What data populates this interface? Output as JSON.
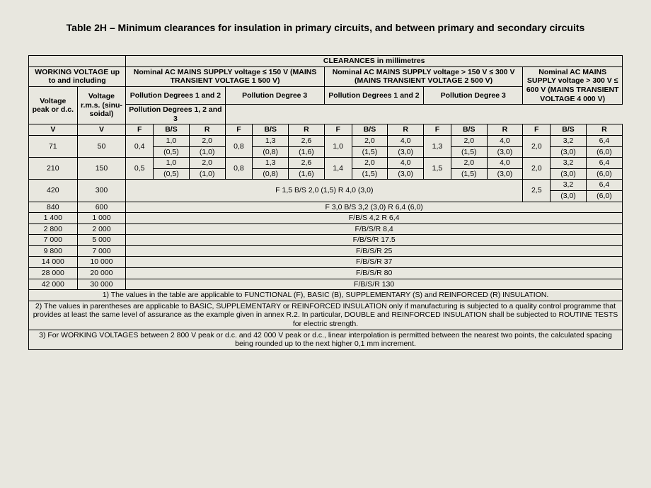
{
  "title": "Table 2H – Minimum clearances for insulation in primary circuits, and between primary and secondary circuits",
  "clearances_label": "CLEARANCES in millimetres",
  "headers": {
    "working": "WORKING VOLTAGE up to and including",
    "grp1": "Nominal AC MAINS SUPPLY voltage ≤ 150 V (MAINS TRANSIENT VOLTAGE 1 500 V)",
    "grp2": "Nominal AC MAINS SUPPLY voltage > 150 V ≤ 300 V (MAINS TRANSIENT VOLTAGE 2 500 V)",
    "grp3": "Nominal AC MAINS SUPPLY voltage > 300 V ≤ 600 V (MAINS TRANSIENT VOLTAGE 4 000 V)",
    "vpeak": "Voltage peak or d.c.",
    "vrms": "Voltage r.m.s. (sinu-soidal)",
    "pd12": "Pollution Degrees 1 and 2",
    "pd3": "Pollution Degree 3",
    "pd123": "Pollution Degrees 1, 2 and 3",
    "V": "V",
    "F": "F",
    "BS": "B/S",
    "R": "R"
  },
  "rows_top": [
    {
      "v1": "71",
      "v2": "50",
      "c": [
        [
          "0,4",
          "1,0",
          "2,0"
        ],
        [
          "0,8",
          "1,3",
          "2,6"
        ],
        [
          "1,0",
          "2,0",
          "4,0"
        ],
        [
          "1,3",
          "2,0",
          "4,0"
        ],
        [
          "2,0",
          "3,2",
          "6,4"
        ]
      ],
      "p": [
        [
          "",
          "(0,5)",
          "(1,0)"
        ],
        [
          "",
          "(0,8)",
          "(1,6)"
        ],
        [
          "",
          "(1,5)",
          "(3,0)"
        ],
        [
          "",
          "(1,5)",
          "(3,0)"
        ],
        [
          "",
          "(3,0)",
          "(6,0)"
        ]
      ]
    },
    {
      "v1": "210",
      "v2": "150",
      "c": [
        [
          "0,5",
          "1,0",
          "2,0"
        ],
        [
          "0,8",
          "1,3",
          "2,6"
        ],
        [
          "1,4",
          "2,0",
          "4,0"
        ],
        [
          "1,5",
          "2,0",
          "4,0"
        ],
        [
          "2,0",
          "3,2",
          "6,4"
        ]
      ],
      "p": [
        [
          "",
          "(0,5)",
          "(1,0)"
        ],
        [
          "",
          "(0,8)",
          "(1,6)"
        ],
        [
          "",
          "(1,5)",
          "(3,0)"
        ],
        [
          "",
          "(1,5)",
          "(3,0)"
        ],
        [
          "",
          "(3,0)",
          "(6,0)"
        ]
      ]
    }
  ],
  "row420": {
    "v1": "420",
    "v2": "300",
    "merged": "F 1,5 B/S 2,0 (1,5) R 4,0 (3,0)",
    "c5": [
      "2,5",
      "3,2",
      "6,4"
    ],
    "p5": [
      "",
      "(3,0)",
      "(6,0)"
    ]
  },
  "rows_full": [
    {
      "v1": "840",
      "v2": "600",
      "t": "F 3,0 B/S 3,2 (3,0) R 6,4 (6,0)"
    },
    {
      "v1": "1 400",
      "v2": "1 000",
      "t": "F/B/S 4,2 R 6,4"
    },
    {
      "v1": "2 800",
      "v2": "2 000",
      "t": "F/B/S/R 8,4"
    },
    {
      "v1": "7 000",
      "v2": "5 000",
      "t": "F/B/S/R 17.5"
    },
    {
      "v1": "9 800",
      "v2": "7 000",
      "t": "F/B/S/R 25"
    },
    {
      "v1": "14 000",
      "v2": "10 000",
      "t": "F/B/S/R 37"
    },
    {
      "v1": "28 000",
      "v2": "20 000",
      "t": "F/B/S/R 80"
    },
    {
      "v1": "42 000",
      "v2": "30 000",
      "t": "F/B/S/R 130"
    }
  ],
  "notes": [
    "1) The values in the table are applicable to FUNCTIONAL (F), BASIC (B), SUPPLEMENTARY (S) and REINFORCED (R) INSULATION.",
    "2) The values in parentheses are applicable to BASIC, SUPPLEMENTARY or REINFORCED INSULATION only if manufacturing is subjected to a quality control programme that provides at least the same level of assurance as the example given in annex R.2. In particular, DOUBLE and REINFORCED INSULATION shall be subjected to ROUTINE TESTS for electric strength.",
    "3) For WORKING VOLTAGES between 2 800 V peak or d.c. and 42 000 V peak or d.c., linear interpolation is permitted between the nearest two points, the calculated spacing being rounded up to the next higher 0,1 mm increment."
  ],
  "style": {
    "background": "#e8e7df",
    "border_color": "#000000",
    "font_family": "Arial",
    "title_fontsize": 14,
    "cell_fontsize": 10.5
  }
}
